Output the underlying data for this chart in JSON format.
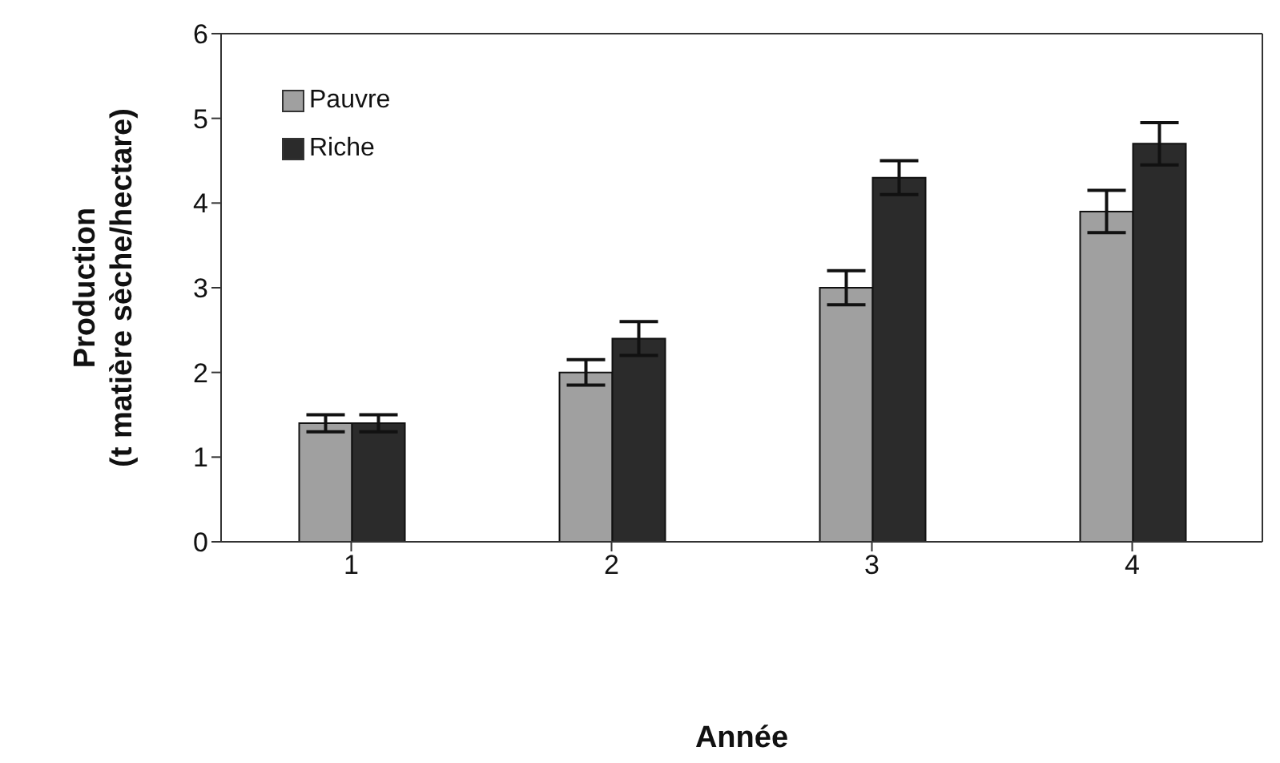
{
  "chart_data": {
    "type": "bar",
    "xlabel": "Année",
    "ylabel": "Production\n(t matière sèche/hectare)",
    "categories": [
      "1",
      "2",
      "3",
      "4"
    ],
    "series": [
      {
        "name": "Pauvre",
        "color": "#a0a0a0",
        "values": [
          1.4,
          2.0,
          3.0,
          3.9
        ],
        "errors": [
          0.1,
          0.15,
          0.2,
          0.25
        ]
      },
      {
        "name": "Riche",
        "color": "#2b2b2b",
        "values": [
          1.4,
          2.4,
          4.3,
          4.7
        ],
        "errors": [
          0.1,
          0.2,
          0.2,
          0.25
        ]
      }
    ],
    "ylim": [
      0,
      6
    ],
    "yticks": [
      0,
      1,
      2,
      3,
      4,
      5,
      6
    ],
    "grid": false,
    "legend": "top left"
  }
}
